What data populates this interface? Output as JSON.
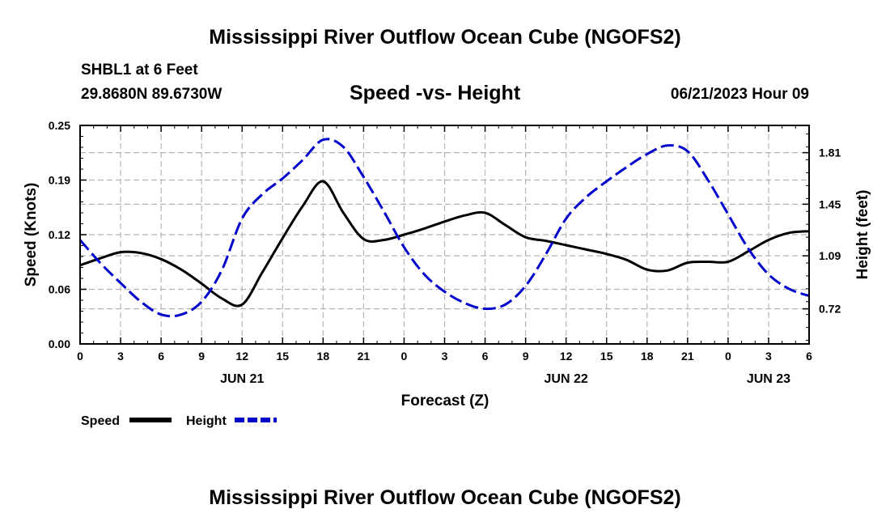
{
  "page": {
    "title": "Mississippi River Outflow Ocean Cube (NGOFS2)",
    "footer_title": "Mississippi River Outflow Ocean Cube (NGOFS2)",
    "station": "SHBL1 at 6 Feet",
    "coords": "29.8680N  89.6730W",
    "plot_title": "Speed -vs- Height",
    "datetime": "06/21/2023 Hour 09"
  },
  "chart_data": {
    "type": "line",
    "title": "Speed -vs- Height",
    "xlabel": "Forecast (Z)",
    "ylabel": "Speed (Knots)",
    "y2label": "Height (feet)",
    "xlim": [
      0,
      54
    ],
    "ylim": [
      0,
      0.25
    ],
    "y2lim": [
      0.475,
      2.0
    ],
    "x_ticks": [
      0,
      3,
      6,
      9,
      12,
      15,
      18,
      21,
      24,
      27,
      30,
      33,
      36,
      39,
      42,
      45,
      48,
      51,
      54
    ],
    "x_tick_labels": [
      "0",
      "3",
      "6",
      "9",
      "12",
      "15",
      "18",
      "21",
      "0",
      "3",
      "6",
      "9",
      "12",
      "15",
      "18",
      "21",
      "0",
      "3",
      "6"
    ],
    "y_ticks": [
      0,
      0.0625,
      0.125,
      0.1875,
      0.25
    ],
    "y_tick_labels": [
      "0.00",
      "0.06",
      "0.12",
      "0.19",
      "0.25"
    ],
    "y2_ticks": [
      0.72,
      1.09,
      1.45,
      1.81
    ],
    "y2_tick_labels": [
      "0.72",
      "1.09",
      "1.45",
      "1.81"
    ],
    "date_labels": [
      {
        "x": 12,
        "label": "JUN 21"
      },
      {
        "x": 36,
        "label": "JUN 22"
      },
      {
        "x": 51,
        "label": "JUN 23"
      }
    ],
    "grid": true,
    "legend_position": "bottom-left",
    "series": [
      {
        "name": "Speed",
        "axis": "left",
        "color": "#000000",
        "dash": "solid",
        "x": [
          0,
          1.5,
          3,
          4.5,
          6,
          7.5,
          9,
          10.5,
          12,
          13.5,
          15,
          16.5,
          18,
          19.5,
          21,
          22.5,
          24,
          25.5,
          27,
          28.5,
          30,
          31.5,
          33,
          34.5,
          36,
          37.5,
          39,
          40.5,
          42,
          43.5,
          45,
          46.5,
          48,
          49.5,
          51,
          52.5,
          54
        ],
        "values": [
          0.09,
          0.098,
          0.105,
          0.104,
          0.097,
          0.085,
          0.069,
          0.052,
          0.045,
          0.082,
          0.121,
          0.158,
          0.186,
          0.15,
          0.12,
          0.119,
          0.125,
          0.132,
          0.14,
          0.147,
          0.15,
          0.136,
          0.122,
          0.118,
          0.113,
          0.108,
          0.103,
          0.096,
          0.085,
          0.084,
          0.093,
          0.094,
          0.094,
          0.106,
          0.119,
          0.127,
          0.129
        ]
      },
      {
        "name": "Height",
        "axis": "right",
        "color": "#0000CC",
        "dash": "dashed",
        "x": [
          0,
          1.5,
          3,
          4.5,
          6,
          7.5,
          9,
          10.5,
          12,
          13.5,
          15,
          16.5,
          18,
          19.5,
          21,
          22.5,
          24,
          25.5,
          27,
          28.5,
          30,
          31.5,
          33,
          34.5,
          36,
          37.5,
          39,
          40.5,
          42,
          43.5,
          45,
          46.5,
          48,
          49.5,
          51,
          52.5,
          54
        ],
        "values": [
          1.2,
          1.04,
          0.9,
          0.77,
          0.68,
          0.68,
          0.77,
          0.99,
          1.35,
          1.52,
          1.63,
          1.76,
          1.9,
          1.85,
          1.64,
          1.4,
          1.15,
          0.96,
          0.84,
          0.76,
          0.72,
          0.75,
          0.88,
          1.1,
          1.35,
          1.5,
          1.61,
          1.71,
          1.8,
          1.86,
          1.82,
          1.62,
          1.38,
          1.14,
          0.96,
          0.86,
          0.81
        ]
      }
    ]
  }
}
